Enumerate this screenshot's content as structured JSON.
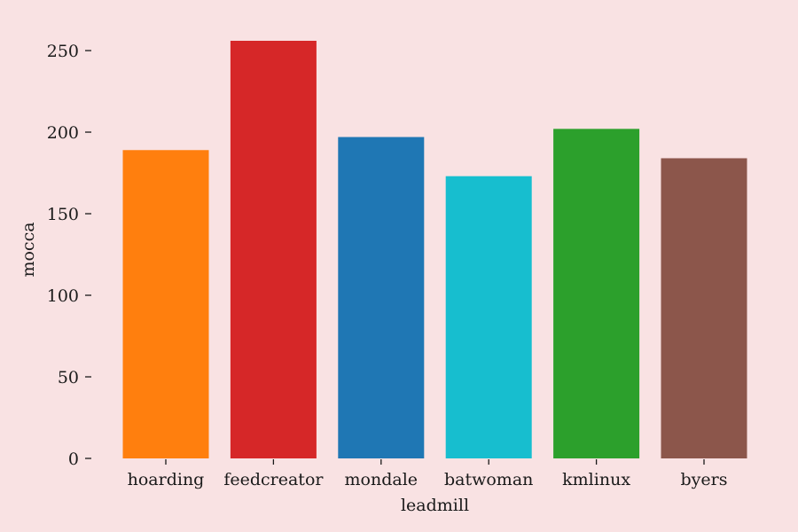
{
  "chart_data": {
    "type": "bar",
    "title": "",
    "xlabel": "leadmill",
    "ylabel": "mocca",
    "categories": [
      "hoarding",
      "feedcreator",
      "mondale",
      "batwoman",
      "kmlinux",
      "byers"
    ],
    "values": [
      189,
      256,
      197,
      173,
      202,
      184
    ],
    "colors": [
      "#ff7f0e",
      "#d62728",
      "#1f77b4",
      "#17becf",
      "#2ca02c",
      "#8c564b"
    ],
    "ylim": [
      0,
      256
    ],
    "yticks": [
      0,
      50,
      100,
      150,
      200,
      250
    ],
    "grid": false,
    "legend": "none",
    "background": "#f9e2e3"
  }
}
